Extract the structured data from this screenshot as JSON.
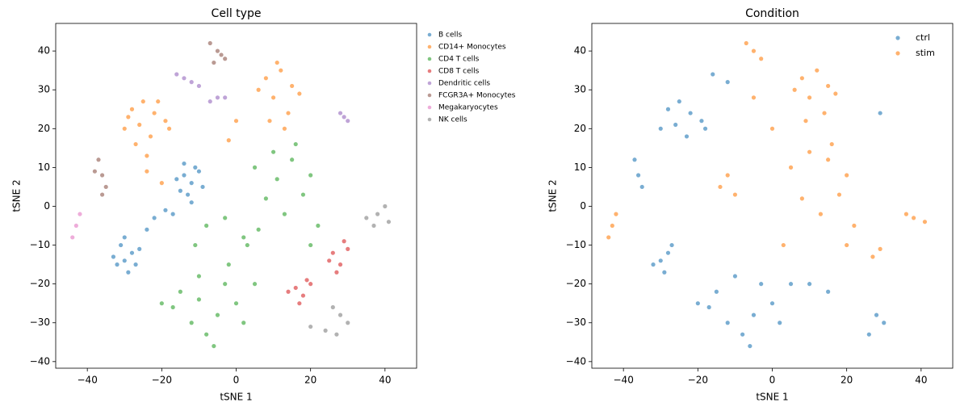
{
  "chart_data": [
    {
      "type": "scatter",
      "title": "Cell type",
      "xlabel": "tSNE 1",
      "ylabel": "tSNE 2",
      "xlim": [
        -48.5,
        48.5
      ],
      "ylim": [
        -41.7,
        47.1
      ],
      "xticks": [
        {
          "value": -40,
          "label": "−40"
        },
        {
          "value": -20,
          "label": "−20"
        },
        0,
        20,
        40
      ],
      "yticks": [
        {
          "value": -40,
          "label": "−40"
        },
        {
          "value": -30,
          "label": "−30"
        },
        {
          "value": -20,
          "label": "−20"
        },
        {
          "value": -10,
          "label": "−10"
        },
        0,
        10,
        20,
        30,
        40
      ],
      "legend_loc": "outside upper left",
      "series": [
        {
          "name": "B cells",
          "color": "#1f77b4",
          "x": [
            -14,
            -12,
            -10,
            -15,
            -13,
            -11,
            -9,
            -16,
            -12,
            -14,
            -30,
            -28,
            -32,
            -29,
            -31,
            -27,
            -33,
            -30,
            -26,
            -22,
            -19,
            -24,
            -17
          ],
          "values": [
            8,
            6,
            9,
            4,
            3,
            10,
            5,
            7,
            1,
            11,
            -14,
            -12,
            -15,
            -17,
            -10,
            -15,
            -13,
            -8,
            -11,
            -3,
            -1,
            -6,
            -2
          ]
        },
        {
          "name": "CD14+ Monocytes",
          "color": "#ff7f0e",
          "x": [
            -28,
            -25,
            -22,
            -19,
            -30,
            -26,
            -23,
            -18,
            -27,
            -24,
            -21,
            -29,
            8,
            12,
            15,
            10,
            6,
            14,
            17,
            9,
            11,
            13,
            -2,
            0,
            -24,
            -20
          ],
          "values": [
            25,
            27,
            24,
            22,
            20,
            21,
            18,
            20,
            16,
            13,
            27,
            23,
            33,
            35,
            31,
            28,
            30,
            24,
            29,
            22,
            37,
            20,
            17,
            22,
            9,
            6
          ]
        },
        {
          "name": "CD4 T cells",
          "color": "#2ca02c",
          "x": [
            5,
            10,
            15,
            20,
            8,
            13,
            18,
            22,
            3,
            11,
            16,
            6,
            20,
            -15,
            -10,
            -5,
            0,
            -12,
            -8,
            -3,
            2,
            -17,
            -10,
            -6,
            5,
            -20,
            -2,
            -8,
            -3,
            2,
            -11
          ],
          "values": [
            10,
            14,
            12,
            8,
            2,
            -2,
            3,
            -5,
            -10,
            7,
            16,
            -6,
            -10,
            -22,
            -18,
            -28,
            -25,
            -30,
            -33,
            -20,
            -30,
            -26,
            -24,
            -36,
            -20,
            -25,
            -15,
            -5,
            -3,
            -8,
            -10
          ]
        },
        {
          "name": "CD8 T cells",
          "color": "#d62728",
          "x": [
            26,
            28,
            30,
            27,
            29,
            25,
            16,
            18,
            20,
            17,
            19,
            14
          ],
          "values": [
            -12,
            -15,
            -11,
            -17,
            -9,
            -14,
            -21,
            -23,
            -20,
            -25,
            -19,
            -22
          ]
        },
        {
          "name": "Dendritic cells",
          "color": "#9467bd",
          "x": [
            -16,
            -14,
            -12,
            -10,
            -7,
            -5,
            -3,
            28,
            29,
            30
          ],
          "values": [
            34,
            33,
            32,
            31,
            27,
            28,
            28,
            24,
            23,
            22
          ]
        },
        {
          "name": "FCGR3A+ Monocytes",
          "color": "#8c564b",
          "x": [
            -7,
            -5,
            -3,
            -6,
            -4,
            -37,
            -36,
            -35,
            -38,
            -36
          ],
          "values": [
            42,
            40,
            38,
            37,
            39,
            12,
            8,
            5,
            9,
            3
          ]
        },
        {
          "name": "Megakaryocytes",
          "color": "#e377c2",
          "x": [
            -44,
            -43,
            -42
          ],
          "values": [
            -8,
            -5,
            -2
          ]
        },
        {
          "name": "NK cells",
          "color": "#7f7f7f",
          "x": [
            35,
            38,
            41,
            40,
            37,
            28,
            30,
            26,
            27,
            20,
            24
          ],
          "values": [
            -3,
            -2,
            -4,
            0,
            -5,
            -28,
            -30,
            -26,
            -33,
            -31,
            -32
          ]
        }
      ]
    },
    {
      "type": "scatter",
      "title": "Condition",
      "xlabel": "tSNE 1",
      "ylabel": "tSNE 2",
      "xlim": [
        -48.5,
        48.5
      ],
      "ylim": [
        -41.7,
        47.1
      ],
      "xticks": [
        {
          "value": -40,
          "label": "−40"
        },
        {
          "value": -20,
          "label": "−20"
        },
        0,
        20,
        40
      ],
      "yticks": [
        {
          "value": -40,
          "label": "−40"
        },
        {
          "value": -30,
          "label": "−30"
        },
        {
          "value": -20,
          "label": "−20"
        },
        {
          "value": -10,
          "label": "−10"
        },
        0,
        10,
        20,
        30,
        40
      ],
      "legend_loc": "upper right",
      "series": [
        {
          "name": "ctrl",
          "color": "#1f77b4",
          "x": [
            -28,
            -25,
            -22,
            -19,
            -30,
            -26,
            -23,
            -18,
            -37,
            -36,
            -35,
            -16,
            -12,
            -30,
            -28,
            -32,
            -29,
            -27,
            -15,
            -10,
            -5,
            0,
            5,
            10,
            15,
            -12,
            -8,
            -3,
            2,
            -17,
            -6,
            -20,
            28,
            30,
            26,
            29
          ],
          "values": [
            25,
            27,
            24,
            22,
            20,
            21,
            18,
            20,
            12,
            8,
            5,
            34,
            32,
            -14,
            -12,
            -15,
            -17,
            -10,
            -22,
            -18,
            -28,
            -25,
            -20,
            -20,
            -22,
            -30,
            -33,
            -20,
            -30,
            -26,
            -36,
            -25,
            -28,
            -30,
            -33,
            24
          ]
        },
        {
          "name": "stim",
          "color": "#ff7f0e",
          "x": [
            8,
            12,
            15,
            10,
            6,
            14,
            17,
            9,
            -7,
            -5,
            -3,
            5,
            10,
            15,
            20,
            8,
            13,
            18,
            22,
            3,
            16,
            20,
            -14,
            -12,
            -10,
            38,
            41,
            36,
            27,
            29,
            -44,
            -43,
            -42,
            -5,
            0
          ],
          "values": [
            33,
            35,
            31,
            28,
            30,
            24,
            29,
            22,
            42,
            40,
            38,
            10,
            14,
            12,
            8,
            2,
            -2,
            3,
            -5,
            -10,
            16,
            -10,
            5,
            8,
            3,
            -3,
            -4,
            -2,
            -13,
            -11,
            -8,
            -5,
            -2,
            28,
            20
          ]
        }
      ]
    }
  ]
}
